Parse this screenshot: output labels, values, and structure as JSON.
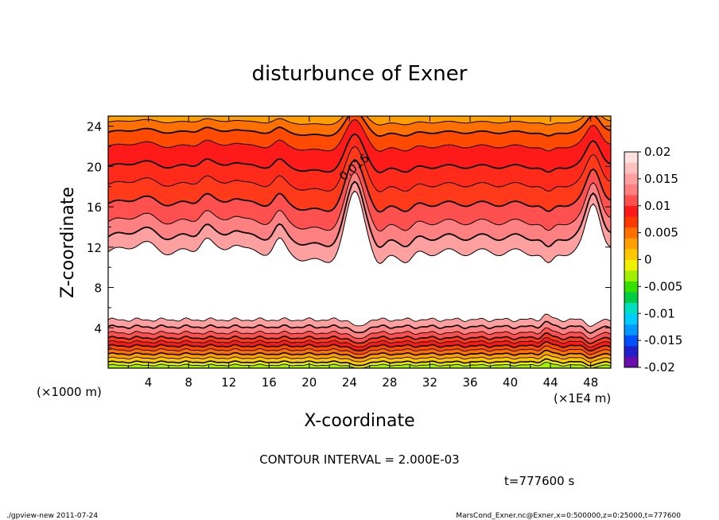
{
  "chart_data": {
    "type": "contour",
    "title": "disturbunce of Exner",
    "xlabel": "X-coordinate",
    "ylabel": "Z-coordinate",
    "x_unit": "(×1E4 m)",
    "y_unit": "(×1000 m)",
    "xlim": [
      0,
      50
    ],
    "ylim": [
      0,
      25
    ],
    "x_ticks": [
      4,
      8,
      12,
      16,
      20,
      24,
      28,
      32,
      36,
      40,
      44,
      48
    ],
    "y_ticks": [
      4,
      8,
      12,
      16,
      20,
      24
    ],
    "contour_interval_text": "CONTOUR INTERVAL = 2.000E-03",
    "time_text": "t=777600 s",
    "contour_label": "0.016",
    "contour_label_x": 24.0,
    "contour_label_y": 19.5,
    "colorbar": {
      "ticks": [
        "0.02",
        "0.015",
        "0.01",
        "0.005",
        "0",
        "-0.005",
        "-0.01",
        "-0.015",
        "-0.02"
      ],
      "min": -0.02,
      "max": 0.02,
      "colors": [
        "#6a0dad",
        "#2020c8",
        "#0050ff",
        "#0099ff",
        "#00ccff",
        "#00e0c0",
        "#00cc44",
        "#33e000",
        "#a0f000",
        "#f0f000",
        "#ffc800",
        "#ffa000",
        "#ff7000",
        "#ff3a00",
        "#ff1a1a",
        "#ff5050",
        "#ff8080",
        "#ffa0a0",
        "#ffc0c0",
        "#ffe0e0"
      ]
    },
    "fields": {
      "upper_band_colors": [
        "#ffa0a0",
        "#ff8080",
        "#ff5050",
        "#ff3a1a",
        "#ff2a1a",
        "#ff1a1a",
        "#ff4a00",
        "#ff7000",
        "#ffa000"
      ],
      "upper_band_levels_z": [
        11.5,
        13.0,
        14.5,
        16.3,
        18.2,
        20.0,
        22.0,
        23.4,
        24.4
      ],
      "lower_band_colors": [
        "#ffa0a0",
        "#ff8080",
        "#ff5050",
        "#ff3a1a",
        "#ff1a1a",
        "#ff4a00",
        "#ff7000",
        "#ffa000",
        "#ffc800",
        "#f0f000",
        "#a0f000"
      ],
      "lower_band_levels_z": [
        4.8,
        4.1,
        3.5,
        3.0,
        2.6,
        2.2,
        1.8,
        1.4,
        1.0,
        0.6,
        0.3
      ]
    },
    "grid": false,
    "legend": "colorbar-right"
  },
  "footer": {
    "left": "./gpview-new  2011-07-24",
    "right": "MarsCond_Exner.nc@Exner,x=0:500000,z=0:25000,t=777600"
  }
}
